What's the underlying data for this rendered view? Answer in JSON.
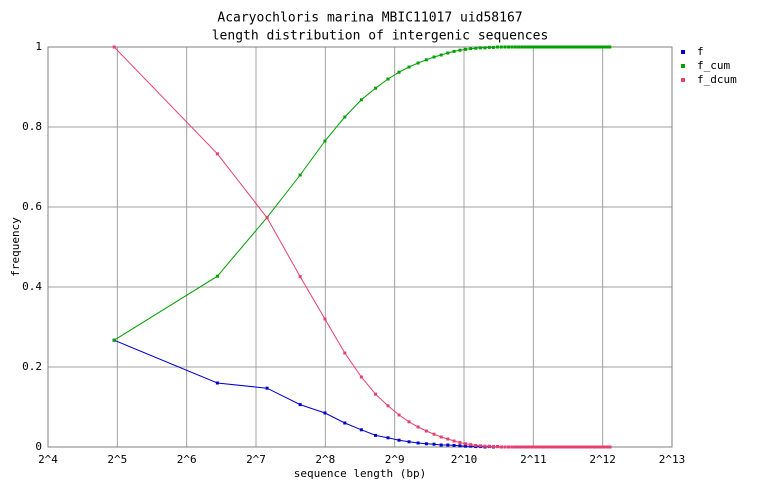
{
  "chart_data": {
    "type": "line",
    "title": "Acaryochloris marina MBIC11017 uid58167",
    "subtitle": "length distribution of intergenic sequences",
    "x_label": "sequence length (bp)",
    "y_label": "frequency",
    "x_log_base": 2,
    "grid": true,
    "legend": "right",
    "xlim": [
      16,
      8192
    ],
    "xticks": [
      {
        "value": 16,
        "label": "2^4"
      },
      {
        "value": 32,
        "label": "2^5"
      },
      {
        "value": 64,
        "label": "2^6"
      },
      {
        "value": 128,
        "label": "2^7"
      },
      {
        "value": 256,
        "label": "2^8"
      },
      {
        "value": 512,
        "label": "2^9"
      },
      {
        "value": 1024,
        "label": "2^10"
      },
      {
        "value": 2048,
        "label": "2^11"
      },
      {
        "value": 4096,
        "label": "2^12"
      },
      {
        "value": 8192,
        "label": "2^13"
      }
    ],
    "ylim": [
      0,
      1
    ],
    "yticks": [
      0,
      0.2,
      0.4,
      0.6,
      0.8,
      1
    ],
    "x": [
      31,
      87,
      143,
      199,
      255,
      311,
      367,
      423,
      479,
      535,
      591,
      647,
      703,
      759,
      815,
      871,
      927,
      983,
      1039,
      1095,
      1151,
      1207,
      1263,
      1319,
      1375,
      1431,
      1487,
      1543,
      1599,
      1655,
      1711,
      1767,
      1823,
      1879,
      1935,
      1991,
      2047,
      2103,
      2159,
      2215,
      2271,
      2327,
      2383,
      2439,
      2495,
      2551,
      2607,
      2663,
      2719,
      2775,
      2831,
      2887,
      2943,
      2999,
      3055,
      3111,
      3167,
      3223,
      3279,
      3335,
      3391,
      3447,
      3503,
      3559,
      3615,
      3671,
      3727,
      3783,
      3839,
      3895,
      3951,
      4007,
      4063,
      4119,
      4175,
      4231,
      4287,
      4343,
      4399
    ],
    "series": [
      {
        "name": "f",
        "color": "#0000cc",
        "values": [
          0.267,
          0.16,
          0.147,
          0.106,
          0.085,
          0.06,
          0.043,
          0.029,
          0.023,
          0.017,
          0.013,
          0.01,
          0.008,
          0.007,
          0.005,
          0.005,
          0.004,
          0.003,
          0.002,
          0.002,
          0.001,
          0.001,
          0,
          0.001,
          0,
          0.001,
          0,
          0,
          0,
          0,
          0,
          0,
          0,
          0,
          0,
          0,
          0,
          0,
          0,
          0,
          0,
          0,
          0,
          0,
          0,
          0,
          0,
          0,
          0,
          0,
          0,
          0,
          0,
          0,
          0,
          0,
          0,
          0,
          0,
          0,
          0,
          0,
          0,
          0,
          0,
          0,
          0,
          0,
          0,
          0,
          0,
          0,
          0,
          0,
          0,
          0,
          0,
          0,
          0
        ]
      },
      {
        "name": "f_cum",
        "color": "#00a000",
        "values": [
          0.267,
          0.427,
          0.574,
          0.68,
          0.765,
          0.825,
          0.868,
          0.897,
          0.92,
          0.937,
          0.95,
          0.96,
          0.968,
          0.975,
          0.98,
          0.985,
          0.989,
          0.992,
          0.994,
          0.996,
          0.997,
          0.998,
          0.998,
          0.999,
          0.999,
          1,
          1,
          1,
          1,
          1,
          1,
          1,
          1,
          1,
          1,
          1,
          1,
          1,
          1,
          1,
          1,
          1,
          1,
          1,
          1,
          1,
          1,
          1,
          1,
          1,
          1,
          1,
          1,
          1,
          1,
          1,
          1,
          1,
          1,
          1,
          1,
          1,
          1,
          1,
          1,
          1,
          1,
          1,
          1,
          1,
          1,
          1,
          1,
          1,
          1,
          1,
          1,
          1,
          1
        ]
      },
      {
        "name": "f_dcum",
        "color": "#e8406e",
        "values": [
          1,
          0.733,
          0.573,
          0.426,
          0.32,
          0.235,
          0.175,
          0.132,
          0.103,
          0.08,
          0.063,
          0.05,
          0.04,
          0.032,
          0.025,
          0.02,
          0.015,
          0.011,
          0.008,
          0.006,
          0.004,
          0.003,
          0.002,
          0.002,
          0.001,
          0.001,
          0,
          0,
          0,
          0,
          0,
          0,
          0,
          0,
          0,
          0,
          0,
          0,
          0,
          0,
          0,
          0,
          0,
          0,
          0,
          0,
          0,
          0,
          0,
          0,
          0,
          0,
          0,
          0,
          0,
          0,
          0,
          0,
          0,
          0,
          0,
          0,
          0,
          0,
          0,
          0,
          0,
          0,
          0,
          0,
          0,
          0,
          0,
          0,
          0,
          0,
          0,
          0,
          0
        ]
      }
    ]
  }
}
